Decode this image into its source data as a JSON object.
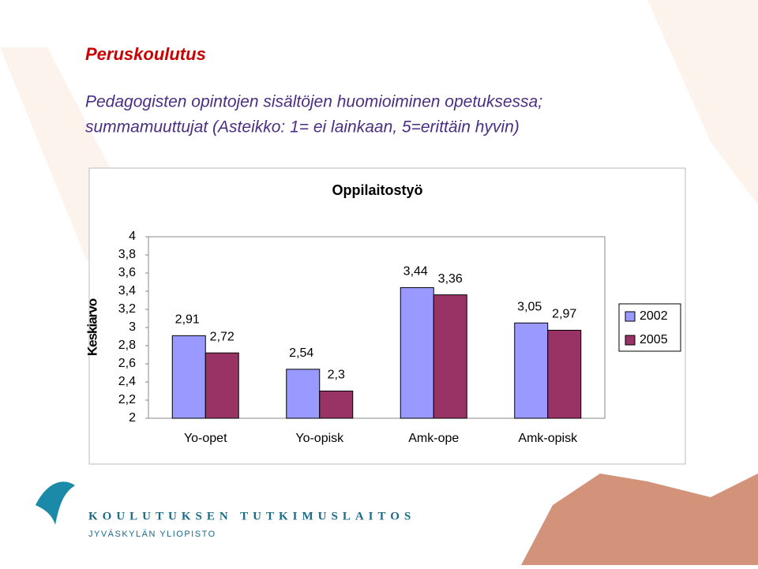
{
  "header": {
    "title": "Peruskoulutus",
    "subtitle": [
      "Pedagogisten opintojen sisältöjen huomioiminen opetuksessa;",
      "summamuuttujat (Asteikko: 1= ei lainkaan, 5=erittäin hyvin)"
    ]
  },
  "chart_data": {
    "type": "bar",
    "title": "Oppilaitostyö",
    "y_label": "Keskiarvo",
    "categories": [
      "Yo-opet",
      "Yo-opisk",
      "Amk-ope",
      "Amk-opisk"
    ],
    "series": [
      {
        "name": "2002",
        "color": "#9999ff",
        "values": [
          2.91,
          2.54,
          3.44,
          3.05
        ],
        "value_labels": [
          "2,91",
          "2,54",
          "3,44",
          "3,05"
        ]
      },
      {
        "name": "2005",
        "color": "#993366",
        "values": [
          2.72,
          2.3,
          3.36,
          2.97
        ],
        "value_labels": [
          "2,72",
          "2,3",
          "3,36",
          "2,97"
        ]
      }
    ],
    "ylim": [
      2,
      4
    ],
    "yticks": [
      2,
      {
        "value": 2.2,
        "label": "2,2"
      },
      {
        "value": 2.4,
        "label": "2,4"
      },
      {
        "value": 2.6,
        "label": "2,6"
      },
      {
        "value": 2.8,
        "label": "2,8"
      },
      3,
      {
        "value": 3.2,
        "label": "3,2"
      },
      {
        "value": 3.4,
        "label": "3,4"
      },
      {
        "value": 3.6,
        "label": "3,6"
      },
      {
        "value": 3.8,
        "label": "3,8"
      },
      4
    ],
    "legend": "right"
  },
  "footer": {
    "institute": "KOULUTUKSEN TUTKIMUSLAITOS",
    "university": "JYVÄSKYLÄN YLIOPISTO"
  }
}
